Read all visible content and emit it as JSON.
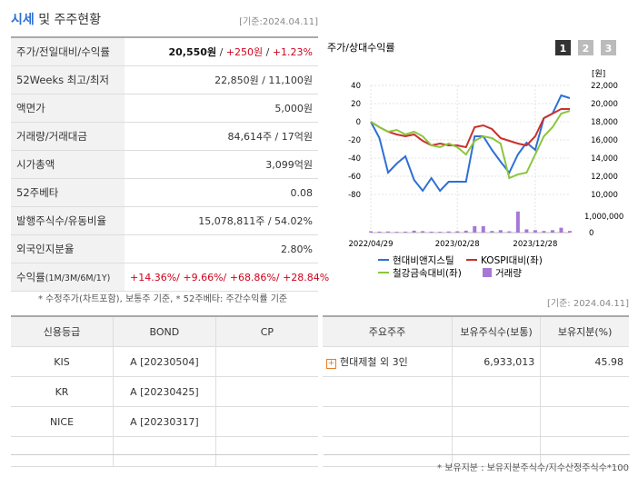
{
  "header": {
    "title_main": "시세",
    "title_rest": "및 주주현황",
    "date": "[기준:2024.04.11]"
  },
  "summary": {
    "rows": [
      {
        "label": [
          "주가/전일대비/수익률"
        ],
        "value": [
          "20,550원",
          " / ",
          "+250원",
          " / ",
          "+1.23%"
        ]
      },
      {
        "label": [
          "52Weeks 최고/최저"
        ],
        "value": [
          "22,850원 / 11,100원"
        ]
      },
      {
        "label": [
          "액면가"
        ],
        "value": [
          "5,000원"
        ]
      },
      {
        "label": [
          "거래량/거래대금"
        ],
        "value": [
          "84,614주 / 17억원"
        ]
      },
      {
        "label": [
          "시가총액"
        ],
        "value": [
          "3,099억원"
        ]
      },
      {
        "label": [
          "52주베타"
        ],
        "value": [
          "0.08"
        ]
      },
      {
        "label": [
          "발행주식수/유동비율"
        ],
        "value": [
          "15,078,811주 / 54.02%"
        ]
      },
      {
        "label": [
          "외국인지분율"
        ],
        "value": [
          "2.80%"
        ]
      },
      {
        "label": [
          "수익률",
          "(1M/3M/6M/1Y)"
        ],
        "value": [
          "+14.36%/ +9.66%/ +68.86%/ +28.84%"
        ]
      }
    ],
    "note": "* 수정주가(차트포함), 보통주 기준, * 52주베타: 주간수익률 기준"
  },
  "chart_data": {
    "type": "line",
    "title": "주가/상대수익률",
    "buttons": [
      "1",
      "2",
      "3"
    ],
    "y2_unit": "[원]",
    "categories": [
      "2022/04/29",
      null,
      null,
      null,
      null,
      null,
      null,
      null,
      null,
      null,
      "2023/02/28",
      null,
      null,
      null,
      null,
      null,
      null,
      null,
      null,
      "2023/12/28",
      null,
      null,
      null,
      null
    ],
    "ylim": [
      -80,
      40
    ],
    "yticks": [
      40,
      20,
      0,
      -20,
      -40,
      -60,
      -80
    ],
    "y2lim": [
      10000,
      22000
    ],
    "y2ticks": [
      {
        "value": 22000,
        "label": "22,000"
      },
      {
        "value": 20000,
        "label": "20,000"
      },
      {
        "value": 18000,
        "label": "18,000"
      },
      {
        "value": 16000,
        "label": "16,000"
      },
      {
        "value": 14000,
        "label": "14,000"
      },
      {
        "value": 12000,
        "label": "12,000"
      },
      {
        "value": 10000,
        "label": "10,000"
      }
    ],
    "y3lim": [
      0,
      1400000
    ],
    "y3ticks": [
      {
        "value": 1000000,
        "label": "1,000,000"
      },
      0
    ],
    "grid": true,
    "series": [
      {
        "name": "현대비앤지스틸",
        "color": "#2e6fd6",
        "axis": "y2",
        "values": [
          18000,
          16200,
          12400,
          13400,
          14200,
          11600,
          10400,
          11800,
          10400,
          11400,
          11400,
          11400,
          16400,
          16400,
          14900,
          13600,
          12400,
          14400,
          15700,
          14900,
          18400,
          18900,
          20900,
          20600
        ]
      },
      {
        "name": "KOSPI대비(좌)",
        "color": "#c9302c",
        "values": [
          0,
          -6,
          -11,
          -14,
          -16,
          -14,
          -21,
          -26,
          -24,
          -26,
          -26,
          -28,
          -6,
          -4,
          -8,
          -18,
          -21,
          -24,
          -26,
          -16,
          4,
          9,
          14,
          14
        ]
      },
      {
        "name": "철강금속대비(좌)",
        "color": "#8cc63f",
        "values": [
          0,
          -6,
          -11,
          -9,
          -14,
          -11,
          -16,
          -26,
          -28,
          -24,
          -28,
          -36,
          -21,
          -16,
          -18,
          -24,
          -62,
          -58,
          -56,
          -36,
          -16,
          -6,
          9,
          12
        ]
      },
      {
        "name": "거래량",
        "color": "#a678d6",
        "type": "bar",
        "axis": "y3",
        "values": [
          80000,
          60000,
          70000,
          50000,
          60000,
          120000,
          90000,
          60000,
          50000,
          70000,
          80000,
          120000,
          400000,
          400000,
          100000,
          150000,
          80000,
          1300000,
          200000,
          150000,
          100000,
          150000,
          300000,
          100000
        ]
      }
    ]
  },
  "credit": {
    "headers": [
      "신용등급",
      "BOND",
      "CP"
    ],
    "rows": [
      [
        "KIS",
        "A [20230504]"
      ],
      [
        "KR",
        "A [20230425]"
      ],
      [
        "NICE",
        "A [20230317]"
      ]
    ]
  },
  "holders": {
    "date": "[기준: 2024.04.11]",
    "headers": [
      "주요주주",
      "보유주식수(보통)",
      "보유지분(%)"
    ],
    "rows": [
      [
        "현대제철 외 3인",
        "6,933,013",
        "45.98"
      ]
    ],
    "note": "* 보유지분 : 보유지분주식수/지수산정주식수*100"
  }
}
